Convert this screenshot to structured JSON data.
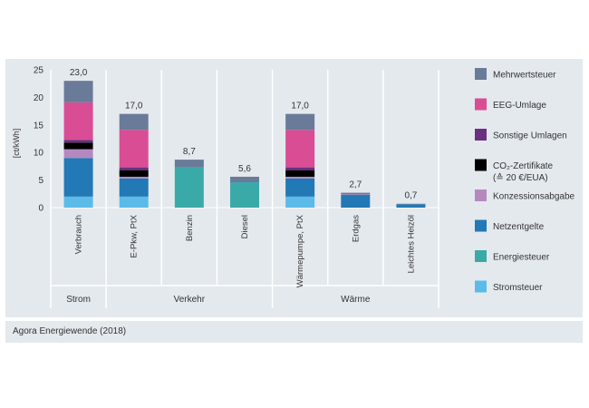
{
  "chart_data": {
    "type": "bar",
    "stacked": true,
    "ylabel": "[ct/kWh]",
    "ylim": [
      0,
      25
    ],
    "yticks": [
      0,
      5,
      10,
      15,
      20,
      25
    ],
    "categories": [
      "Verbrauch",
      "E-Pkw, PtX",
      "Benzin",
      "Diesel",
      "Wärmepumpe, PtX",
      "Erdgas",
      "Leichtes Heizöl"
    ],
    "groups": [
      {
        "label": "Strom",
        "categories": [
          "Verbrauch"
        ]
      },
      {
        "label": "Verkehr",
        "categories": [
          "E-Pkw, PtX",
          "Benzin",
          "Diesel"
        ]
      },
      {
        "label": "Wärme",
        "categories": [
          "Wärmepumpe, PtX",
          "Erdgas",
          "Leichtes Heizöl"
        ]
      }
    ],
    "totals": [
      "23,0",
      "17,0",
      "8,7",
      "5,6",
      "17,0",
      "2,7",
      "0,7"
    ],
    "series": [
      {
        "name": "Stromsteuer",
        "color": "#5bbbe8",
        "values": [
          2.0,
          2.0,
          0,
          0,
          2.0,
          0,
          0
        ]
      },
      {
        "name": "Energiesteuer",
        "color": "#3aaaa8",
        "values": [
          0,
          0,
          7.3,
          4.6,
          0,
          0,
          0
        ]
      },
      {
        "name": "Netzentgelte",
        "color": "#2279b5",
        "values": [
          7.0,
          3.3,
          0,
          0,
          3.3,
          2.3,
          0.6
        ]
      },
      {
        "name": "Konzessionsabgabe",
        "color": "#b589c0",
        "values": [
          1.6,
          0.3,
          0,
          0,
          0.3,
          0.1,
          0
        ]
      },
      {
        "name": "CO2-Zertifikate (≙ 20 €/EUA)",
        "color": "#000000",
        "values": [
          1.2,
          1.2,
          0,
          0,
          1.2,
          0,
          0
        ]
      },
      {
        "name": "Sonstige Umlagen",
        "color": "#6b3080",
        "values": [
          0.5,
          0.5,
          0,
          0,
          0.5,
          0,
          0
        ]
      },
      {
        "name": "EEG-Umlage",
        "color": "#d94d94",
        "values": [
          6.8,
          6.8,
          0,
          0,
          6.8,
          0,
          0
        ]
      },
      {
        "name": "Mehrwertsteuer",
        "color": "#6a7a99",
        "values": [
          3.9,
          2.9,
          1.4,
          1.0,
          2.9,
          0.3,
          0.1
        ]
      }
    ],
    "legend_order": [
      "Mehrwertsteuer",
      "EEG-Umlage",
      "Sonstige Umlagen",
      "CO2-Zertifikate (≙ 20 €/EUA)",
      "Konzessionsabgabe",
      "Netzentgelte",
      "Energiesteuer",
      "Stromsteuer"
    ],
    "legend": [
      {
        "key": "Mehrwertsteuer",
        "lines": [
          "Mehrwertsteuer"
        ]
      },
      {
        "key": "EEG-Umlage",
        "lines": [
          "EEG-Umlage"
        ]
      },
      {
        "key": "Sonstige Umlagen",
        "lines": [
          "Sonstige Umlagen"
        ]
      },
      {
        "key": "CO2-Zertifikate (≙ 20 €/EUA)",
        "lines": [
          "CO₂-Zertifikate",
          "(≙ 20 €/EUA)"
        ]
      },
      {
        "key": "Konzessionsabgabe",
        "lines": [
          "Konzessionsabgabe"
        ]
      },
      {
        "key": "Netzentgelte",
        "lines": [
          "Netzentgelte"
        ]
      },
      {
        "key": "Energiesteuer",
        "lines": [
          "Energiesteuer"
        ]
      },
      {
        "key": "Stromsteuer",
        "lines": [
          "Stromsteuer"
        ]
      }
    ],
    "legend_position": "right",
    "grid": false
  },
  "source": "Agora Energiewende (2018)"
}
